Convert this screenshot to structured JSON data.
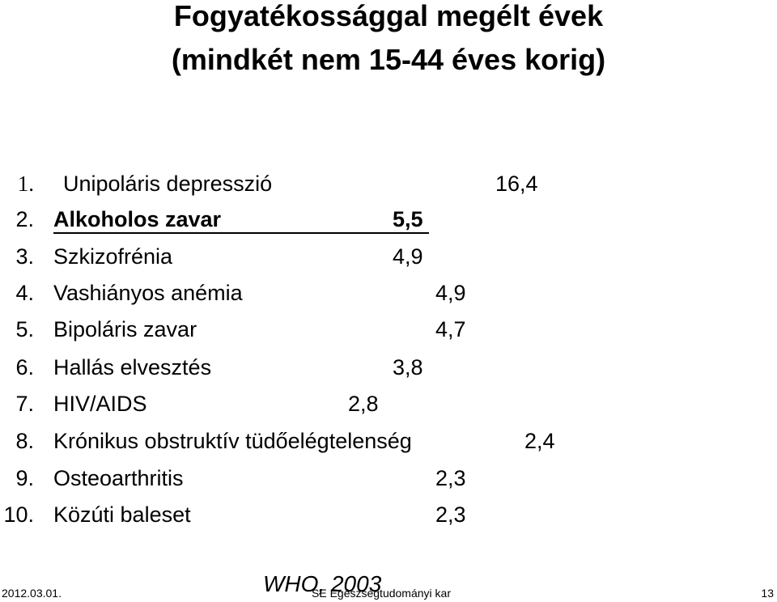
{
  "title": {
    "line1": "Fogyatékossággal megélt évek",
    "line2": "(mindkét nem 15-44 éves korig)"
  },
  "items": [
    {
      "number": "1.",
      "name": "Unipoláris depresszió",
      "value": "16,4"
    },
    {
      "number": "2.",
      "name": "Alkoholos zavar",
      "value": "5,5"
    },
    {
      "number": "3.",
      "name": "Szkizofrénia",
      "value": "4,9"
    },
    {
      "number": "4.",
      "name": "Vashiányos anémia",
      "value": "4,9"
    },
    {
      "number": "5.",
      "name": "Bipoláris zavar",
      "value": "4,7"
    },
    {
      "number": "6.",
      "name": "Hallás elvesztés",
      "value": "3,8"
    },
    {
      "number": "7.",
      "name": "HIV/AIDS",
      "value": "2,8"
    },
    {
      "number": "8.",
      "name": "Krónikus obstruktív tüdőelégtelenség",
      "value": "2,4"
    },
    {
      "number": "9.",
      "name": "Osteoarthritis",
      "value": "2,3"
    },
    {
      "number": "10.",
      "name": "Közúti baleset",
      "value": "2,3"
    }
  ],
  "footer": {
    "date": "2012.03.01.",
    "source": "WHO, 2003",
    "institution": "SE Egészségtudományi kar",
    "page": "13"
  }
}
